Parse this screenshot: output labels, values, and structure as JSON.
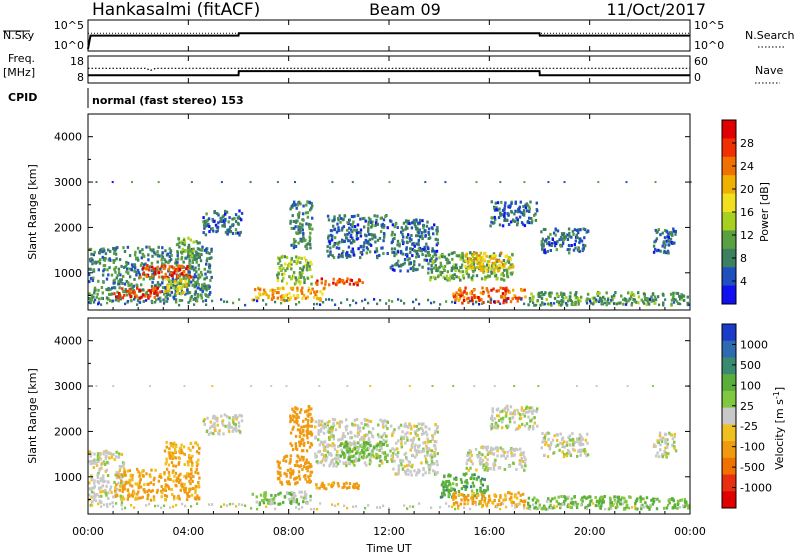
{
  "header": {
    "station": "Hankasalmi (fitACF)",
    "beam": "Beam 09",
    "date": "11/Oct/2017"
  },
  "status_panels": {
    "nsky_label": "N.Sky",
    "nsky_ticks": [
      "10^5",
      "10^0"
    ],
    "nsearch_label": "N.Search",
    "nsearch_ticks": [
      "10^5",
      "10^0"
    ],
    "freq_label_1": "Freq.",
    "freq_label_2": "[MHz]",
    "freq_ticks": [
      "18",
      "8"
    ],
    "nave_label": "Nave",
    "nave_ticks": [
      "60",
      "0"
    ],
    "cpid_label": "CPID",
    "cpid_text": "normal (fast stereo) 153"
  },
  "time_ticks": [
    "00:00",
    "04:00",
    "08:00",
    "12:00",
    "16:00",
    "20:00",
    "00:00"
  ],
  "time_label": "Time UT",
  "power_panel": {
    "ylabel": "Slant Range [km]",
    "yticks": [
      "4000",
      "3000",
      "2000",
      "1000"
    ],
    "cbar_label": "Power [dB]",
    "cbar_ticks": [
      "28",
      "24",
      "20",
      "16",
      "12",
      "8",
      "4"
    ],
    "colors": [
      "#1010f0",
      "#2050c0",
      "#3c8060",
      "#5aa040",
      "#a8d020",
      "#f0e020",
      "#f0b000",
      "#f07000",
      "#f03000",
      "#e00000"
    ]
  },
  "velocity_panel": {
    "ylabel": "Slant Range [km]",
    "yticks": [
      "4000",
      "3000",
      "2000",
      "1000"
    ],
    "cbar_label": "Velocity [m s",
    "cbar_label_sup": "-1",
    "cbar_label_end": "]",
    "cbar_ticks": [
      "1000",
      "500",
      "100",
      "25",
      "-25",
      "-100",
      "-500",
      "-1000"
    ],
    "colors": [
      "#1a3cc8",
      "#2e6ab0",
      "#3a8a70",
      "#5aae3c",
      "#80c840",
      "#c8c8c8",
      "#f0c020",
      "#f09a10",
      "#f07000",
      "#e83010",
      "#e00000"
    ]
  },
  "chart_data": [
    {
      "type": "line",
      "title": "N.Sky / N.Search",
      "x_unit": "hours UT",
      "series": [
        {
          "name": "N.Sky",
          "x": [
            0,
            0.1,
            6,
            6.01,
            18,
            18.01,
            24
          ],
          "y": [
            1,
            300,
            300,
            800,
            800,
            300,
            300
          ]
        },
        {
          "name": "N.Search",
          "x": [
            0,
            24
          ],
          "y": [
            800,
            800
          ]
        }
      ],
      "yscale": "log",
      "ylim": [
        1,
        100000
      ]
    },
    {
      "type": "line",
      "title": "Freq. / Nave",
      "x_unit": "hours UT",
      "series": [
        {
          "name": "Freq. [MHz]",
          "x": [
            0,
            6,
            6.01,
            18,
            18.01,
            24
          ],
          "y": [
            10.5,
            10.5,
            12.3,
            12.3,
            10.5,
            10.5
          ],
          "ylim": [
            8,
            18
          ]
        },
        {
          "name": "Nave",
          "x": [
            0,
            2.3,
            2.5,
            2.7,
            2.9,
            24
          ],
          "y": [
            33,
            33,
            28,
            33,
            33,
            33
          ],
          "ylim": [
            0,
            60
          ]
        }
      ]
    },
    {
      "type": "heatmap",
      "title": "Power [dB]",
      "x_unit": "hours UT",
      "xlim": [
        0,
        24
      ],
      "ylabel": "Slant Range [km]",
      "ylim": [
        180,
        4500
      ],
      "clim": [
        0,
        30
      ],
      "regions": [
        {
          "t0": 0.0,
          "t1": 5.0,
          "r0": 300,
          "r1": 1600,
          "v": 8
        },
        {
          "t0": 1.0,
          "t1": 3.0,
          "r0": 400,
          "r1": 700,
          "v": 26
        },
        {
          "t0": 2.0,
          "t1": 4.2,
          "r0": 850,
          "r1": 1200,
          "v": 25
        },
        {
          "t0": 3.0,
          "t1": 4.0,
          "r0": 500,
          "r1": 900,
          "v": 16
        },
        {
          "t0": 3.5,
          "t1": 4.5,
          "r0": 1200,
          "r1": 1800,
          "v": 10
        },
        {
          "t0": 4.5,
          "t1": 6.2,
          "r0": 1800,
          "r1": 2400,
          "v": 6
        },
        {
          "t0": 6.5,
          "t1": 9.5,
          "r0": 350,
          "r1": 700,
          "v": 20
        },
        {
          "t0": 7.5,
          "t1": 9.0,
          "r0": 700,
          "r1": 1400,
          "v": 12
        },
        {
          "t0": 8.0,
          "t1": 9.0,
          "r0": 1500,
          "r1": 2600,
          "v": 8
        },
        {
          "t0": 9.0,
          "t1": 11.0,
          "r0": 700,
          "r1": 900,
          "v": 24
        },
        {
          "t0": 9.5,
          "t1": 12.0,
          "r0": 1300,
          "r1": 2300,
          "v": 6
        },
        {
          "t0": 12.0,
          "t1": 14.0,
          "r0": 1000,
          "r1": 2200,
          "v": 6
        },
        {
          "t0": 13.5,
          "t1": 17.0,
          "r0": 800,
          "r1": 1500,
          "v": 10
        },
        {
          "t0": 14.5,
          "t1": 17.5,
          "r0": 300,
          "r1": 700,
          "v": 24
        },
        {
          "t0": 15.0,
          "t1": 17.0,
          "r0": 1000,
          "r1": 1500,
          "v": 18
        },
        {
          "t0": 16.0,
          "t1": 18.0,
          "r0": 2000,
          "r1": 2600,
          "v": 6
        },
        {
          "t0": 17.5,
          "t1": 24.0,
          "r0": 250,
          "r1": 600,
          "v": 10
        },
        {
          "t0": 18.0,
          "t1": 20.0,
          "r0": 1400,
          "r1": 2000,
          "v": 6
        },
        {
          "t0": 22.5,
          "t1": 23.5,
          "r0": 1400,
          "r1": 2000,
          "v": 6
        }
      ]
    },
    {
      "type": "heatmap",
      "title": "Velocity [m s-1]",
      "x_unit": "hours UT",
      "xlim": [
        0,
        24
      ],
      "ylabel": "Slant Range [km]",
      "ylim": [
        180,
        4500
      ],
      "clim": [
        -1000,
        1000
      ],
      "regions": [
        {
          "t0": 0.0,
          "t1": 1.5,
          "r0": 300,
          "r1": 1600,
          "v": 0
        },
        {
          "t0": 1.0,
          "t1": 4.5,
          "r0": 450,
          "r1": 1200,
          "v": -120
        },
        {
          "t0": 3.0,
          "t1": 4.5,
          "r0": 1200,
          "r1": 1800,
          "v": -100
        },
        {
          "t0": 4.5,
          "t1": 6.2,
          "r0": 1900,
          "r1": 2400,
          "v": 0
        },
        {
          "t0": 6.5,
          "t1": 9.0,
          "r0": 350,
          "r1": 700,
          "v": 40
        },
        {
          "t0": 7.5,
          "t1": 9.0,
          "r0": 800,
          "r1": 1500,
          "v": -150
        },
        {
          "t0": 8.0,
          "t1": 9.0,
          "r0": 1500,
          "r1": 2600,
          "v": -200
        },
        {
          "t0": 9.0,
          "t1": 11.0,
          "r0": 700,
          "r1": 900,
          "v": -120
        },
        {
          "t0": 9.0,
          "t1": 12.0,
          "r0": 1200,
          "r1": 2300,
          "v": 0
        },
        {
          "t0": 10.0,
          "t1": 12.0,
          "r0": 1300,
          "r1": 1800,
          "v": 60
        },
        {
          "t0": 12.0,
          "t1": 14.0,
          "r0": 1000,
          "r1": 2200,
          "v": 0
        },
        {
          "t0": 14.0,
          "t1": 16.0,
          "r0": 500,
          "r1": 1100,
          "v": 80
        },
        {
          "t0": 14.5,
          "t1": 17.5,
          "r0": 300,
          "r1": 700,
          "v": -120
        },
        {
          "t0": 15.0,
          "t1": 17.5,
          "r0": 1100,
          "r1": 1700,
          "v": 0
        },
        {
          "t0": 16.0,
          "t1": 18.0,
          "r0": 2000,
          "r1": 2600,
          "v": 0
        },
        {
          "t0": 17.5,
          "t1": 24.0,
          "r0": 250,
          "r1": 600,
          "v": 60
        },
        {
          "t0": 18.0,
          "t1": 20.0,
          "r0": 1400,
          "r1": 2000,
          "v": 0
        },
        {
          "t0": 22.5,
          "t1": 23.5,
          "r0": 1400,
          "r1": 2000,
          "v": 0
        }
      ]
    }
  ]
}
